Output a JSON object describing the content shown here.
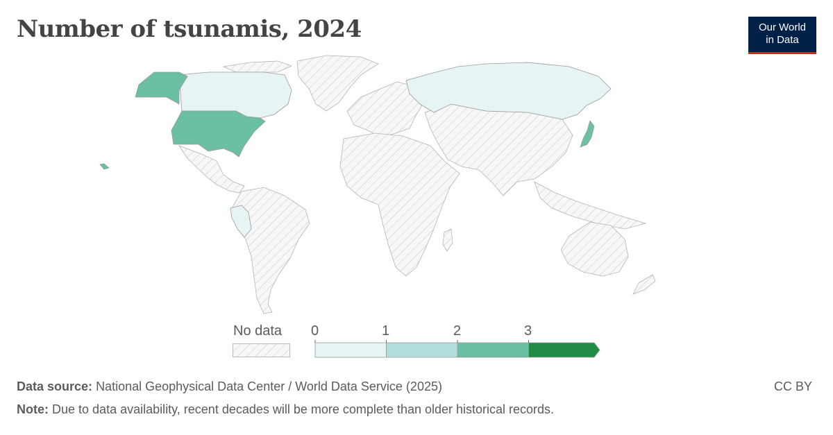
{
  "title": "Number of tsunamis, 2024",
  "logo": {
    "line1": "Our World",
    "line2": "in Data"
  },
  "legend": {
    "nodata_label": "No data",
    "ticks": [
      "0",
      "1",
      "2",
      "3"
    ],
    "bins": [
      {
        "from": 0,
        "to": 1,
        "color": "#e6f4f5"
      },
      {
        "from": 1,
        "to": 2,
        "color": "#b1dedd"
      },
      {
        "from": 2,
        "to": 3,
        "color": "#6bc0a3"
      },
      {
        "from": 3,
        "to": null,
        "color": "#218c47"
      }
    ]
  },
  "map_data": {
    "regions": [
      {
        "name": "United States",
        "value": 2,
        "color": "#6bc0a3"
      },
      {
        "name": "Japan",
        "value": 2,
        "color": "#6bc0a3"
      },
      {
        "name": "Canada",
        "value": 0,
        "color": "#e6f4f5"
      },
      {
        "name": "Russia",
        "value": 0,
        "color": "#e6f4f5"
      },
      {
        "name": "Peru",
        "value": 0,
        "color": "#e6f4f5"
      }
    ],
    "nodata_color": "#f2f2f2",
    "border_color": "#aaaaaa"
  },
  "footer": {
    "source_label": "Data source:",
    "source_text": "National Geophysical Data Center / World Data Service (2025)",
    "note_label": "Note:",
    "note_text": "Due to data availability, recent decades will be more complete than older historical records.",
    "license": "CC BY"
  }
}
